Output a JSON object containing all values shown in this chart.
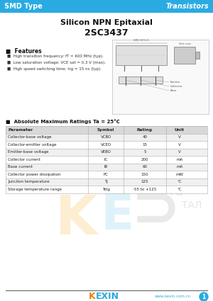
{
  "title1": "Silicon NPN Epitaxial",
  "title2": "2SC3437",
  "header_left": "SMD Type",
  "header_right": "Transistors",
  "header_bg": "#29ABE2",
  "header_text_color": "#FFFFFF",
  "features_title": "■  Features",
  "features": [
    "■  High transition frequency: fT = 600 MHz (typ).",
    "■  Low saturation voltage: VCE sat = 0.3 V (max).",
    "■  High speed switching time: trg = 15 ns (typ)."
  ],
  "abs_max_title": "■  Absolute Maximum Ratings Ta = 25°C",
  "table_headers": [
    "Parameter",
    "Symbol",
    "Rating",
    "Unit"
  ],
  "table_rows": [
    [
      "Collector-base voltage",
      "VCBO",
      "40",
      "V"
    ],
    [
      "Collector-emitter voltage",
      "VCEO",
      "15",
      "V"
    ],
    [
      "Emitter-base voltage",
      "VEBO",
      "5",
      "V"
    ],
    [
      "Collector current",
      "IC",
      "200",
      "mA"
    ],
    [
      "Base current",
      "IB",
      "60",
      "mA"
    ],
    [
      "Collector power dissipation",
      "PC",
      "150",
      "mW"
    ],
    [
      "Junction temperature",
      "Tj",
      "125",
      "°C"
    ],
    [
      "Storage temperature range",
      "Tstg",
      "-55 to +125",
      "°C"
    ]
  ],
  "footer_line_color": "#666666",
  "footer_url": "www.kexin.com.cn",
  "footer_circle_color": "#29ABE2",
  "footer_page_num": "1",
  "bg_color": "#FFFFFF",
  "table_header_bg": "#D8D8D8",
  "table_row_bg1": "#F0F0F0",
  "table_row_bg2": "#FFFFFF",
  "table_border_color": "#AAAAAA",
  "wm_color1": "#F5A000",
  "wm_color2": "#29ABE2",
  "wm_color3": "#555555"
}
